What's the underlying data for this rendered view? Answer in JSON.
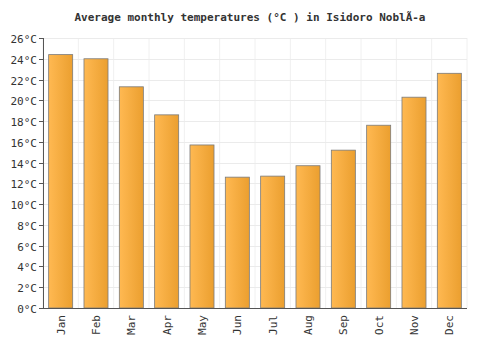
{
  "chart_data": {
    "type": "bar",
    "title": "Average monthly temperatures (°C ) in Isidoro NoblÃ-a",
    "categories": [
      "Jan",
      "Feb",
      "Mar",
      "Apr",
      "May",
      "Jun",
      "Jul",
      "Aug",
      "Sep",
      "Oct",
      "Nov",
      "Dec"
    ],
    "values": [
      24.4,
      24.0,
      21.3,
      18.6,
      15.7,
      12.6,
      12.7,
      13.7,
      15.2,
      17.6,
      20.3,
      22.6
    ],
    "color": "#ffad33",
    "ylim": [
      0,
      26
    ],
    "yticks": [
      {
        "value": 0,
        "label": "0°C"
      },
      {
        "value": 2,
        "label": "2°C"
      },
      {
        "value": 4,
        "label": "4°C"
      },
      {
        "value": 6,
        "label": "6°C"
      },
      {
        "value": 8,
        "label": "8°C"
      },
      {
        "value": 10,
        "label": "10°C"
      },
      {
        "value": 12,
        "label": "12°C"
      },
      {
        "value": 14,
        "label": "14°C"
      },
      {
        "value": 16,
        "label": "16°C"
      },
      {
        "value": 18,
        "label": "18°C"
      },
      {
        "value": 20,
        "label": "20°C"
      },
      {
        "value": 22,
        "label": "22°C"
      },
      {
        "value": 24,
        "label": "24°C"
      },
      {
        "value": 26,
        "label": "26°C"
      }
    ],
    "grid": true
  }
}
